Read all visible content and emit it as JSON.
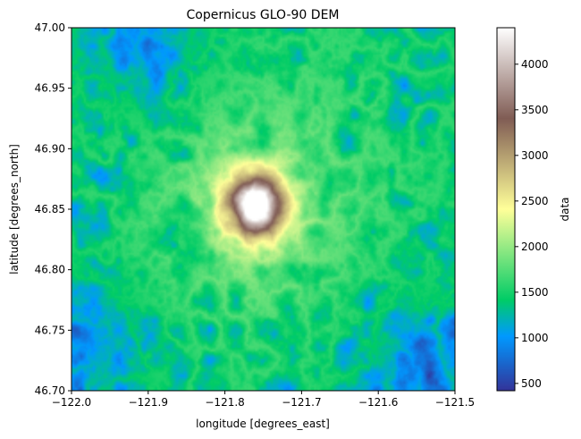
{
  "chart_data": {
    "type": "heatmap",
    "title": "Copernicus GLO-90 DEM",
    "xlabel": "longitude [degrees_east]",
    "ylabel": "latitude [degrees_north]",
    "xlim": [
      -122.0,
      -121.5
    ],
    "ylim": [
      46.7,
      47.0
    ],
    "x_ticks": [
      -122.0,
      -121.9,
      -121.8,
      -121.7,
      -121.6,
      -121.5
    ],
    "x_tick_labels": [
      "−122.0",
      "−121.9",
      "−121.8",
      "−121.7",
      "−121.6",
      "−121.5"
    ],
    "y_ticks": [
      46.7,
      46.75,
      46.8,
      46.85,
      46.9,
      46.95,
      47.0
    ],
    "y_tick_labels": [
      "46.70",
      "46.75",
      "46.80",
      "46.85",
      "46.90",
      "46.95",
      "47.00"
    ],
    "colorbar": {
      "label": "data",
      "colormap": "terrain",
      "vmin": 420,
      "vmax": 4400,
      "ticks": [
        500,
        1000,
        1500,
        2000,
        2500,
        3000,
        3500,
        4000
      ],
      "tick_labels": [
        "500",
        "1000",
        "1500",
        "2000",
        "2500",
        "3000",
        "3500",
        "4000"
      ]
    },
    "features": {
      "peak": {
        "lon": -121.76,
        "lat": 46.853,
        "elevation": 4390
      },
      "low_valleys": [
        {
          "lon": -121.98,
          "lat": 46.74,
          "elevation": 500
        },
        {
          "lon": -121.9,
          "lat": 46.985,
          "elevation": 550
        },
        {
          "lon": -121.55,
          "lat": 46.72,
          "elevation": 600
        }
      ]
    },
    "grid": false,
    "legend": "colorbar-right"
  }
}
